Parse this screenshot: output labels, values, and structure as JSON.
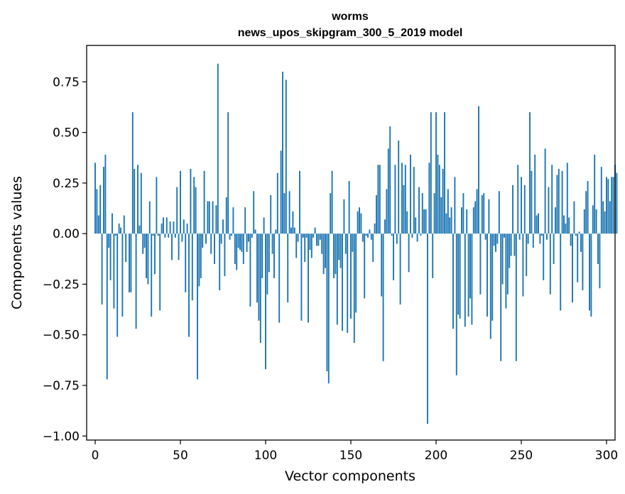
{
  "chart_data": {
    "type": "bar",
    "title": "worms",
    "subtitle": "news_upos_skipgram_300_5_2019 model",
    "xlabel": "Vector components",
    "ylabel": "Components values",
    "xlim": [
      -5,
      305
    ],
    "ylim": [
      -1.02,
      0.93
    ],
    "xticks": [
      0,
      50,
      100,
      150,
      200,
      250,
      300
    ],
    "yticks": [
      -1.0,
      -0.75,
      -0.5,
      -0.25,
      0.0,
      0.25,
      0.5,
      0.75
    ],
    "ytick_labels": [
      "−1.00",
      "−0.75",
      "−0.50",
      "−0.25",
      "0.00",
      "0.25",
      "0.50",
      "0.75"
    ],
    "bar_color": "#1f77b4",
    "bar_width": 0.8,
    "values": [
      0.35,
      0.22,
      0.09,
      0.24,
      -0.35,
      0.33,
      0.39,
      -0.72,
      -0.07,
      -0.23,
      0.1,
      -0.37,
      -0.01,
      -0.51,
      0.05,
      0.03,
      -0.41,
      0.09,
      -0.14,
      0.0,
      -0.29,
      -0.29,
      0.6,
      0.32,
      -0.47,
      0.34,
      0.04,
      0.3,
      -0.1,
      -0.07,
      -0.22,
      -0.25,
      0.16,
      -0.41,
      -0.01,
      -0.2,
      0.28,
      -0.01,
      -0.38,
      0.05,
      0.08,
      -0.02,
      0.08,
      -0.02,
      0.06,
      -0.13,
      0.06,
      -0.02,
      0.23,
      -0.13,
      0.31,
      -0.04,
      0.07,
      -0.29,
      0.05,
      -0.51,
      0.32,
      -0.33,
      0.28,
      0.23,
      -0.72,
      -0.26,
      -0.22,
      -0.07,
      0.31,
      -0.05,
      0.16,
      0.16,
      -0.1,
      0.16,
      -0.15,
      0.14,
      0.84,
      -0.28,
      -0.05,
      0.07,
      -0.21,
      0.18,
      0.6,
      -0.03,
      -0.01,
      0.13,
      -0.15,
      -0.18,
      -0.07,
      -0.08,
      -0.09,
      -0.15,
      0.13,
      -0.09,
      -0.04,
      -0.36,
      -0.02,
      0.21,
      0.02,
      -0.34,
      -0.43,
      -0.54,
      -0.22,
      0.08,
      -0.67,
      -0.3,
      -0.19,
      0.19,
      -0.1,
      -0.22,
      0.02,
      0.3,
      -0.44,
      0.41,
      0.8,
      0.2,
      0.76,
      -0.34,
      0.21,
      0.03,
      0.11,
      0.03,
      -0.12,
      -0.04,
      0.31,
      -0.43,
      -0.02,
      -0.14,
      -0.02,
      -0.44,
      -0.08,
      -0.12,
      -0.02,
      0.03,
      -0.06,
      -0.06,
      -0.03,
      -0.1,
      -0.2,
      -0.17,
      -0.68,
      -0.74,
      0.2,
      0.31,
      -0.22,
      -0.2,
      -0.45,
      -0.13,
      -0.17,
      -0.48,
      0.17,
      -0.1,
      -0.49,
      0.26,
      -0.42,
      -0.09,
      -0.54,
      -0.39,
      0.11,
      0.13,
      0.1,
      -0.04,
      -0.32,
      -0.01,
      -0.02,
      0.02,
      -0.03,
      -0.14,
      0.05,
      0.19,
      0.34,
      0.34,
      -0.31,
      -0.63,
      0.07,
      0.22,
      0.42,
      0.53,
      -0.01,
      -0.23,
      0.34,
      -0.05,
      0.46,
      -0.35,
      0.35,
      0.24,
      0.34,
      0.11,
      -0.19,
      0.39,
      -0.02,
      0.33,
      0.08,
      -0.04,
      0.23,
      -0.01,
      0.2,
      0.12,
      0.12,
      -0.94,
      0.35,
      0.6,
      -0.22,
      0.2,
      0.6,
      0.39,
      0.34,
      0.18,
      0.32,
      0.6,
      0.1,
      0.22,
      0.08,
      0.13,
      -0.47,
      0.28,
      -0.7,
      -0.4,
      -0.42,
      0.13,
      0.2,
      -0.46,
      0.12,
      -0.41,
      -0.32,
      -0.45,
      0.13,
      0.16,
      0.22,
      0.63,
      -0.3,
      0.19,
      0.2,
      -0.03,
      -0.41,
      0.17,
      -0.52,
      -0.43,
      -0.06,
      -0.09,
      -0.05,
      0.21,
      -0.63,
      -0.25,
      -0.02,
      -0.37,
      -0.3,
      -0.17,
      -0.11,
      0.24,
      -0.11,
      -0.63,
      0.34,
      -0.03,
      0.28,
      -0.31,
      0.24,
      -0.21,
      -0.05,
      0.6,
      0.31,
      -0.07,
      0.39,
      0.09,
      0.1,
      -0.05,
      -0.01,
      -0.23,
      0.42,
      -0.03,
      0.23,
      -0.3,
      0.34,
      -0.15,
      0.13,
      0.29,
      0.32,
      -0.38,
      0.31,
      0.09,
      0.05,
      0.35,
      0.08,
      -0.06,
      -0.34,
      0.16,
      -0.01,
      -0.24,
      0.01,
      -0.09,
      -0.28,
      0.12,
      0.21,
      0.26,
      -0.38,
      -0.41,
      0.14,
      0.39,
      0.12,
      -0.15,
      -0.27,
      0.33,
      0.16,
      0.11,
      0.28,
      0.27,
      0.16,
      0.28,
      0.28,
      0.34,
      0.3
    ]
  }
}
